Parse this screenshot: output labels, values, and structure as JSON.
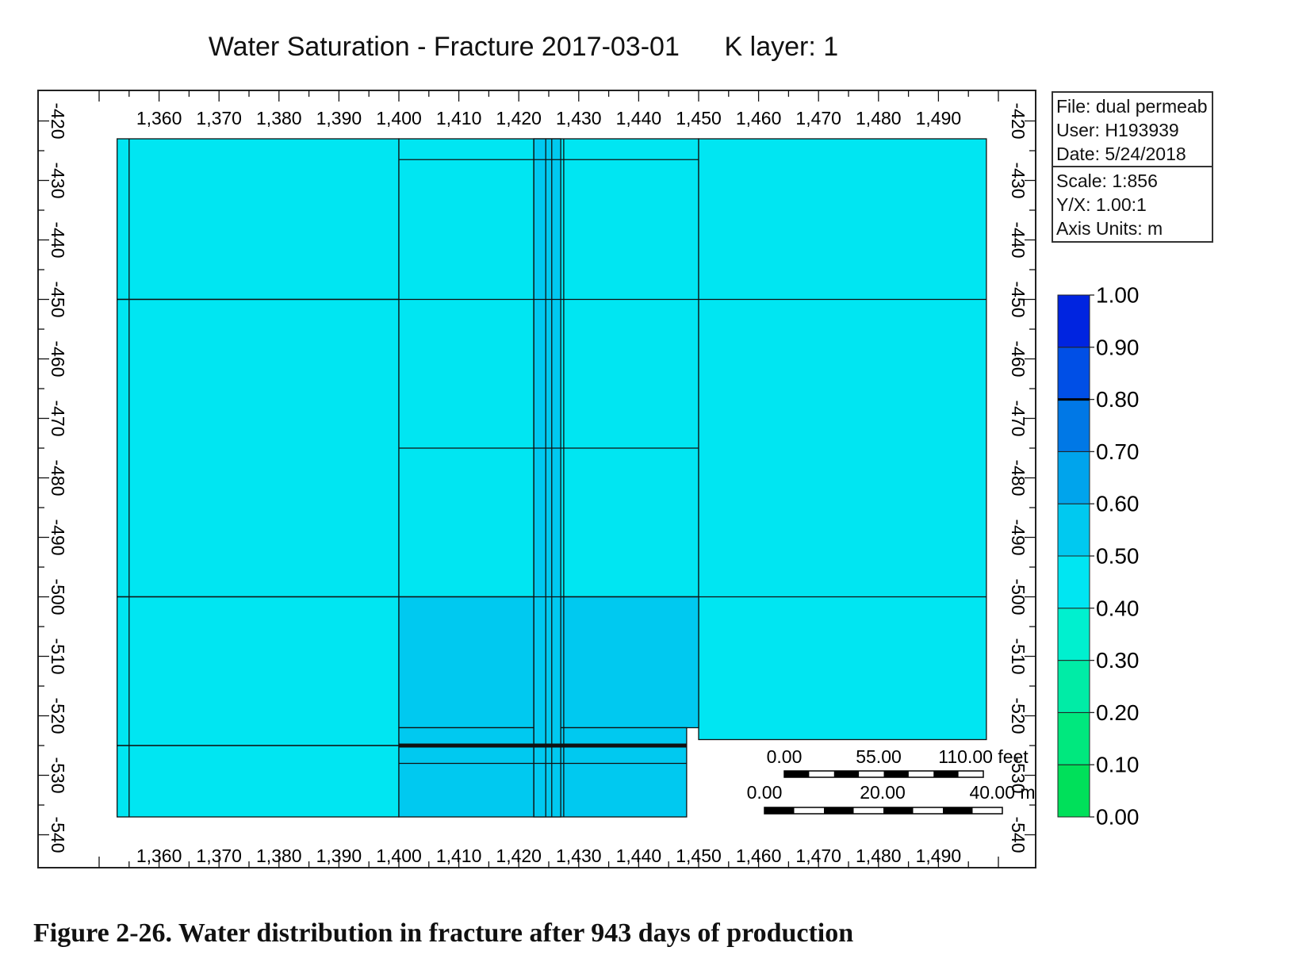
{
  "title": "Water Saturation - Fracture 2017-03-01      K layer: 1",
  "info": {
    "file": "File: dual permeab",
    "user": "User:  H193939",
    "date": "Date: 5/24/2018",
    "scale": "Scale: 1:856",
    "yx": "Y/X: 1.00:1",
    "units": "Axis Units: m"
  },
  "caption": "Figure 2-26. Water distribution in fracture after 943 days of production",
  "chart_data": {
    "type": "heatmap",
    "title": "Water Saturation - Fracture 2017-03-01      K layer: 1",
    "x_ticks": [
      "1,360",
      "1,370",
      "1,380",
      "1,390",
      "1,400",
      "1,410",
      "1,420",
      "1,430",
      "1,440",
      "1,450",
      "1,460",
      "1,470",
      "1,480",
      "1,490"
    ],
    "y_ticks": [
      "-420",
      "-430",
      "-440",
      "-450",
      "-460",
      "-470",
      "-480",
      "-490",
      "-500",
      "-510",
      "-520",
      "-530",
      "-540"
    ],
    "xlim": [
      1350,
      1500
    ],
    "ylim": [
      -540,
      -419
    ],
    "cells": [
      {
        "x0": 1353,
        "x1": 1400,
        "y0": -423,
        "y1": -450,
        "value": 0.45
      },
      {
        "x0": 1353,
        "x1": 1400,
        "y0": -450,
        "y1": -500,
        "value": 0.45
      },
      {
        "x0": 1353,
        "x1": 1400,
        "y0": -500,
        "y1": -525,
        "value": 0.45
      },
      {
        "x0": 1353,
        "x1": 1400,
        "y0": -525,
        "y1": -537,
        "value": 0.45
      },
      {
        "x0": 1400,
        "x1": 1450,
        "y0": -423,
        "y1": -500,
        "value": 0.45
      },
      {
        "x0": 1450,
        "x1": 1498,
        "y0": -423,
        "y1": -524,
        "value": 0.45
      },
      {
        "x0": 1400,
        "x1": 1450,
        "y0": -500,
        "y1": -522,
        "value": 0.55
      },
      {
        "x0": 1400,
        "x1": 1448,
        "y0": -522,
        "y1": -537,
        "value": 0.55
      },
      {
        "x0": 1422.5,
        "x1": 1427,
        "y0": -423,
        "y1": -537,
        "value": 0.55
      }
    ],
    "colorbar": {
      "ticks": [
        "1.00",
        "0.90",
        "0.80",
        "0.70",
        "0.60",
        "0.50",
        "0.40",
        "0.30",
        "0.20",
        "0.10",
        "0.00"
      ],
      "min": 0,
      "max": 1,
      "colors": [
        "#00e05a",
        "#00e87e",
        "#00eca6",
        "#00f0cf",
        "#00e6f2",
        "#00c9f0",
        "#00a4ec",
        "#0078e6",
        "#004fe6",
        "#0024e0"
      ]
    },
    "scale_bar": {
      "feet_labels": [
        "0.00",
        "55.00",
        "110.00 feet"
      ],
      "meter_labels": [
        "0.00",
        "20.00",
        "40.00 m"
      ]
    }
  }
}
